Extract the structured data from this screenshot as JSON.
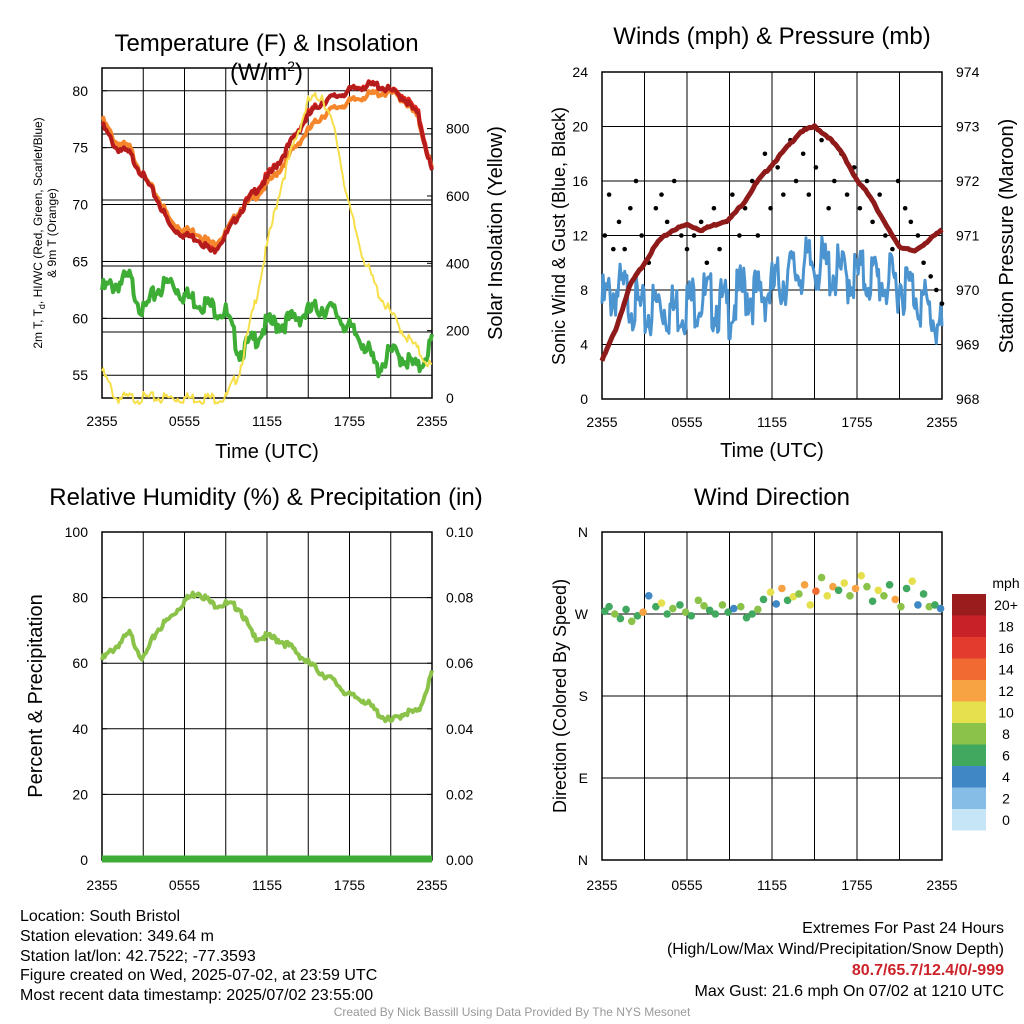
{
  "chart_data": [
    {
      "type": "line",
      "title": "Temperature (F) & Insolation (W/m²)",
      "xlabel": "Time (UTC)",
      "ylabel_left": [
        "2m T, T",
        "d",
        ", HI/WC (Red, Green, Scarlet/Blue)",
        "& 9m T (Orange)"
      ],
      "ylabel_right": "Solar Insolation (Yellow)",
      "x_ticks": [
        "2355",
        "0555",
        "1155",
        "1755",
        "2355"
      ],
      "y_ticks": [
        55,
        60,
        65,
        70,
        75,
        80
      ],
      "ylim": [
        53,
        82
      ],
      "y2_ticks": [
        0,
        200,
        400,
        600,
        800
      ],
      "y2lim": [
        0,
        980
      ],
      "series": [
        {
          "color": "#e82a1f",
          "axis": "left",
          "x": [
            0,
            1,
            2,
            3,
            4,
            5,
            6,
            7,
            8,
            9,
            10,
            11,
            12,
            13,
            14,
            15,
            16,
            17,
            18,
            19,
            20,
            21,
            22,
            23,
            24
          ],
          "y": [
            77.5,
            75,
            74.5,
            72.5,
            70.5,
            68,
            67.5,
            67,
            66,
            67.5,
            69.5,
            71,
            72.5,
            74,
            76,
            78,
            79,
            79.5,
            80,
            80.5,
            80.5,
            80,
            79.5,
            78,
            73
          ]
        },
        {
          "color": "#f5862b",
          "axis": "left",
          "x": [
            0,
            1,
            2,
            3,
            4,
            5,
            6,
            7,
            8,
            9,
            10,
            11,
            12,
            13,
            14,
            15,
            16,
            17,
            18,
            19,
            20,
            21,
            22,
            23,
            24
          ],
          "y": [
            77.5,
            75.5,
            75,
            72.5,
            70.8,
            68.5,
            67.8,
            67.5,
            66.5,
            67.5,
            69.5,
            70.5,
            71.8,
            73.2,
            75,
            76.5,
            77.8,
            78.5,
            79,
            79.5,
            79.8,
            79.8,
            79.2,
            77.5,
            73
          ]
        },
        {
          "color": "#b71c1c",
          "axis": "left",
          "x": [
            0,
            1,
            2,
            3,
            4,
            5,
            6,
            7,
            8,
            9,
            10,
            11,
            12,
            13,
            14,
            15,
            16,
            17,
            18,
            19,
            20,
            21,
            22,
            23,
            24
          ],
          "y": [
            77,
            75,
            74.5,
            72.5,
            70.5,
            68,
            67.3,
            67,
            65.8,
            67.3,
            69.3,
            71,
            72.3,
            74,
            76,
            77.8,
            79,
            79.5,
            80,
            80.4,
            80.5,
            80,
            79.3,
            77.8,
            72.8
          ]
        },
        {
          "color": "#3ead35",
          "axis": "left",
          "x": [
            0,
            1,
            2,
            3,
            4,
            5,
            6,
            7,
            8,
            9,
            10,
            11,
            12,
            13,
            14,
            15,
            16,
            17,
            18,
            19,
            20,
            21,
            22,
            23,
            24
          ],
          "y": [
            62.5,
            63,
            63.5,
            60.5,
            62.5,
            63.2,
            62,
            61.5,
            61,
            60.5,
            57,
            58,
            59.5,
            59.5,
            60,
            60.5,
            61,
            60.5,
            59,
            58,
            55.5,
            57,
            56.5,
            55.5,
            58
          ]
        },
        {
          "color": "#f7df4a",
          "axis": "right",
          "x": [
            0,
            1,
            2,
            3,
            4,
            5,
            6,
            7,
            8,
            9,
            10,
            11,
            12,
            13,
            14,
            15,
            16,
            17,
            18,
            19,
            20,
            21,
            22,
            23,
            24
          ],
          "y": [
            80,
            0,
            0,
            0,
            0,
            0,
            0,
            0,
            0,
            0,
            80,
            260,
            450,
            630,
            760,
            880,
            900,
            780,
            560,
            420,
            320,
            250,
            190,
            140,
            90
          ]
        }
      ]
    },
    {
      "type": "line",
      "title": "Winds (mph) & Pressure (mb)",
      "xlabel": "Time (UTC)",
      "ylabel_left": "Sonic Wind & Gust (Blue, Black)",
      "ylabel_right": "Station Pressure (Maroon)",
      "x_ticks": [
        "2355",
        "0555",
        "1155",
        "1755",
        "2355"
      ],
      "y_ticks": [
        0,
        4,
        8,
        12,
        16,
        20,
        24
      ],
      "ylim": [
        0,
        24
      ],
      "y2_ticks": [
        968,
        969,
        970,
        971,
        972,
        973,
        974
      ],
      "y2lim": [
        968,
        974
      ],
      "series": [
        {
          "color": "#4b94d0",
          "axis": "left",
          "x": [
            0,
            1,
            2,
            3,
            4,
            5,
            6,
            7,
            8,
            9,
            10,
            11,
            12,
            13,
            14,
            15,
            16,
            17,
            18,
            19,
            20,
            21,
            22,
            23,
            24
          ],
          "y": [
            7,
            8,
            7.5,
            6,
            7,
            6.5,
            7,
            7.5,
            7,
            6.5,
            8,
            7.5,
            8,
            9,
            9.5,
            10,
            9.5,
            9,
            9,
            9,
            8.5,
            8.5,
            8,
            6.5,
            5
          ]
        },
        {
          "color": "#8e1a1a",
          "axis": "right",
          "x": [
            0,
            1,
            2,
            3,
            4,
            5,
            6,
            7,
            8,
            9,
            10,
            11,
            12,
            13,
            14,
            15,
            16,
            17,
            18,
            19,
            20,
            21,
            22,
            23,
            24
          ],
          "y": [
            968.7,
            969.3,
            970.1,
            970.5,
            970.9,
            971.1,
            971.2,
            971.1,
            971.2,
            971.3,
            971.6,
            972.0,
            972.3,
            972.6,
            972.9,
            973.0,
            972.8,
            972.5,
            972.0,
            971.7,
            971.2,
            970.8,
            970.7,
            970.9,
            971.1
          ]
        }
      ],
      "gust_points": {
        "color": "#000000",
        "x": [
          0.2,
          0.5,
          0.8,
          1.2,
          1.6,
          2.0,
          2.4,
          2.8,
          3.3,
          3.8,
          4.2,
          4.6,
          5.1,
          5.6,
          6.0,
          6.5,
          7.0,
          7.4,
          7.9,
          8.3,
          8.8,
          9.2,
          9.7,
          10.1,
          10.6,
          11.0,
          11.5,
          11.9,
          12.4,
          12.8,
          13.3,
          13.7,
          14.2,
          14.6,
          15.1,
          15.5,
          16.0,
          16.4,
          16.9,
          17.3,
          17.8,
          18.2,
          18.7,
          19.1,
          19.6,
          20.0,
          20.5,
          20.9,
          21.4,
          21.8,
          22.3,
          22.7,
          23.2,
          23.6,
          24.0
        ],
        "y": [
          12,
          15,
          11,
          13,
          11,
          14,
          16,
          12,
          10,
          14,
          15,
          13,
          16,
          12,
          11,
          12,
          13,
          10,
          14,
          11,
          13,
          15,
          12,
          14,
          16,
          12,
          18,
          14,
          17,
          15,
          19,
          16,
          18,
          15,
          17,
          19,
          14,
          16,
          18,
          15,
          17,
          14,
          16,
          13,
          15,
          12,
          11,
          16,
          14,
          13,
          12,
          10,
          9,
          8,
          7
        ]
      }
    },
    {
      "type": "line",
      "title": "Relative Humidity (%) & Precipitation (in)",
      "ylabel_left": "Percent & Precipitation",
      "x_ticks": [
        "2355",
        "0555",
        "1155",
        "1755",
        "2355"
      ],
      "y_ticks": [
        0,
        20,
        40,
        60,
        80,
        100
      ],
      "ylim": [
        0,
        100
      ],
      "y2_ticks": [
        "0.00",
        "0.02",
        "0.04",
        "0.06",
        "0.08",
        "0.10"
      ],
      "y2lim": [
        0,
        0.1
      ],
      "series": [
        {
          "color": "#8bc34a",
          "axis": "left",
          "x": [
            0,
            1,
            2,
            3,
            4,
            5,
            6,
            7,
            8,
            9,
            10,
            11,
            12,
            13,
            14,
            15,
            16,
            17,
            18,
            19,
            20,
            21,
            22,
            23,
            24
          ],
          "y": [
            61,
            65,
            69,
            61,
            70,
            74,
            79,
            82,
            78,
            78,
            77,
            68,
            68,
            67,
            64,
            60,
            57,
            54,
            50,
            49,
            45,
            42,
            45,
            45,
            57
          ]
        },
        {
          "color": "#3ead35",
          "axis": "right",
          "x": [
            0,
            24
          ],
          "y": [
            0,
            0
          ]
        }
      ]
    },
    {
      "type": "scatter",
      "title": "Wind Direction",
      "ylabel_left": "Direction (Colored By Speed)",
      "x_ticks": [
        "2355",
        "0555",
        "1155",
        "1755",
        "2355"
      ],
      "y_ticks": [
        "N",
        "E",
        "S",
        "W",
        "N"
      ],
      "ylim": [
        0,
        360
      ],
      "legend_unit": "mph",
      "legend_labels": [
        "20+",
        "18",
        "16",
        "14",
        "12",
        "10",
        "8",
        "6",
        "4",
        "2",
        "0"
      ],
      "legend_colors": [
        "#9b1c1c",
        "#c82127",
        "#e33b2e",
        "#f06a31",
        "#f7a243",
        "#e6e04f",
        "#8bc34a",
        "#41a85f",
        "#3f88c5",
        "#86bde6",
        "#c6e5f6"
      ],
      "points": {
        "x": [
          0.2,
          0.5,
          0.9,
          1.3,
          1.7,
          2.1,
          2.5,
          2.9,
          3.3,
          3.8,
          4.2,
          4.6,
          5.0,
          5.5,
          5.9,
          6.3,
          6.8,
          7.2,
          7.6,
          8.0,
          8.5,
          8.9,
          9.3,
          9.8,
          10.2,
          10.6,
          11.0,
          11.4,
          11.9,
          12.3,
          12.7,
          13.1,
          13.5,
          13.9,
          14.3,
          14.7,
          15.1,
          15.5,
          15.9,
          16.3,
          16.7,
          17.1,
          17.5,
          17.9,
          18.3,
          18.7,
          19.1,
          19.5,
          19.9,
          20.3,
          20.7,
          21.1,
          21.5,
          21.9,
          22.3,
          22.7,
          23.1,
          23.5,
          23.9
        ],
        "dir": [
          273,
          278,
          270,
          265,
          275,
          262,
          268,
          272,
          290,
          278,
          282,
          270,
          276,
          280,
          272,
          268,
          285,
          279,
          274,
          270,
          280,
          272,
          276,
          278,
          266,
          270,
          275,
          286,
          294,
          281,
          298,
          285,
          289,
          292,
          302,
          280,
          295,
          310,
          290,
          300,
          296,
          304,
          290,
          298,
          312,
          300,
          284,
          296,
          290,
          302,
          286,
          278,
          298,
          306,
          280,
          292,
          278,
          280,
          276
        ],
        "speed": [
          6,
          5,
          8,
          6,
          6,
          8,
          5,
          12,
          4,
          6,
          10,
          6,
          8,
          6,
          7,
          6,
          8,
          7,
          6,
          6,
          8,
          6,
          4,
          8,
          6,
          6,
          8,
          6,
          10,
          4,
          12,
          6,
          10,
          8,
          12,
          10,
          14,
          8,
          10,
          12,
          6,
          10,
          8,
          12,
          10,
          8,
          6,
          10,
          8,
          6,
          12,
          8,
          6,
          10,
          4,
          6,
          8,
          6,
          4
        ]
      }
    }
  ],
  "footer": {
    "location": "Location: South Bristol",
    "elevation": "Station elevation: 349.64 m",
    "latlon": "Station lat/lon: 42.7522; -77.3593",
    "created": "Figure created on Wed, 2025-07-02, at 23:59 UTC",
    "recent": "Most recent data timestamp: 2025/07/02 23:55:00",
    "extremes_title": "Extremes For Past 24 Hours",
    "extremes_legend": "(High/Low/Max Wind/Precipitation/Snow Depth)",
    "extremes_values": "80.7/65.7/12.4/0/-999",
    "max_gust": "Max Gust: 21.6 mph On 07/02 at 1210 UTC",
    "credit": "Created By Nick Bassill Using Data Provided By The NYS Mesonet"
  }
}
